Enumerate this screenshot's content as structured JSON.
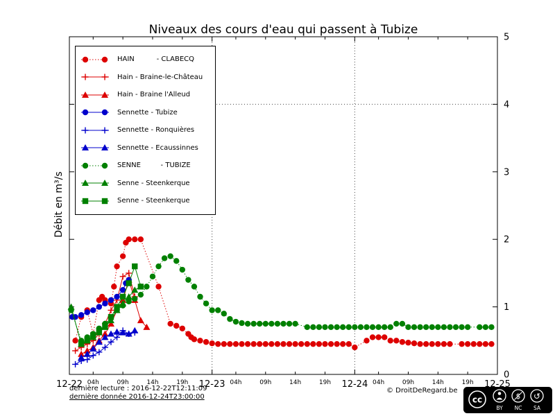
{
  "footer": {
    "line1": "dernière lecture : 2016-12-22T12:11:09",
    "line2": "dernière donnée  2016-12-24T23:00:00",
    "copyright": "© DroitDeRegard.be",
    "license": "CC BY NC SA",
    "license_parts": [
      "BY",
      "NC",
      "SA"
    ],
    "license_logo": "cc"
  },
  "chart_data": {
    "type": "line",
    "title": "Niveaux des cours d'eau qui passent à Tubize",
    "xlabel": "",
    "ylabel": "Débit en m³/s",
    "x_unit": "hours since 2016-12-22 00:00",
    "xlim": [
      0,
      72
    ],
    "ylim": [
      0,
      5
    ],
    "yticks": [
      0,
      1,
      2,
      3,
      4,
      5
    ],
    "x_major_ticks": [
      {
        "t": 0,
        "label": "12-22"
      },
      {
        "t": 24,
        "label": "12-23"
      },
      {
        "t": 48,
        "label": "12-24"
      },
      {
        "t": 72,
        "label": "12-25"
      }
    ],
    "x_minor_ticks": [
      {
        "t": 4,
        "label": "04h"
      },
      {
        "t": 9,
        "label": "09h"
      },
      {
        "t": 14,
        "label": "14h"
      },
      {
        "t": 19,
        "label": "19h"
      },
      {
        "t": 28,
        "label": "04h"
      },
      {
        "t": 33,
        "label": "09h"
      },
      {
        "t": 38,
        "label": "14h"
      },
      {
        "t": 43,
        "label": "19h"
      },
      {
        "t": 52,
        "label": "04h"
      },
      {
        "t": 57,
        "label": "09h"
      },
      {
        "t": 62,
        "label": "14h"
      },
      {
        "t": 67,
        "label": "19h"
      }
    ],
    "grid": {
      "x_hours": [
        24,
        48
      ],
      "y_values": [
        4
      ]
    },
    "legend_position": "top-left",
    "series": [
      {
        "label": "HAIN          - CLABECQ",
        "color": "#dd0000",
        "marker": "circle",
        "line": "dotted",
        "points": [
          [
            1,
            0.5
          ],
          [
            2,
            0.85
          ],
          [
            3,
            0.95
          ],
          [
            4,
            0.6
          ],
          [
            5,
            1.1
          ],
          [
            5.5,
            1.15
          ],
          [
            6,
            1.1
          ],
          [
            7,
            1.05
          ],
          [
            7.5,
            1.3
          ],
          [
            8,
            1.6
          ],
          [
            9,
            1.75
          ],
          [
            9.5,
            1.95
          ],
          [
            10,
            2.0
          ],
          [
            11,
            2.0
          ],
          [
            12,
            2.0
          ],
          [
            15,
            1.3
          ],
          [
            17,
            0.75
          ],
          [
            18,
            0.72
          ],
          [
            19,
            0.68
          ],
          [
            20,
            0.6
          ],
          [
            20.5,
            0.55
          ],
          [
            21,
            0.52
          ],
          [
            22,
            0.5
          ],
          [
            23,
            0.48
          ],
          [
            24,
            0.46
          ],
          [
            25,
            0.45
          ],
          [
            26,
            0.45
          ],
          [
            27,
            0.45
          ],
          [
            28,
            0.45
          ],
          [
            29,
            0.45
          ],
          [
            30,
            0.45
          ],
          [
            31,
            0.45
          ],
          [
            32,
            0.45
          ],
          [
            33,
            0.45
          ],
          [
            34,
            0.45
          ],
          [
            35,
            0.45
          ],
          [
            36,
            0.45
          ],
          [
            37,
            0.45
          ],
          [
            38,
            0.45
          ],
          [
            39,
            0.45
          ],
          [
            40,
            0.45
          ],
          [
            41,
            0.45
          ],
          [
            42,
            0.45
          ],
          [
            43,
            0.45
          ],
          [
            44,
            0.45
          ],
          [
            45,
            0.45
          ],
          [
            46,
            0.45
          ],
          [
            47,
            0.45
          ],
          [
            48,
            0.4
          ],
          [
            50,
            0.5
          ],
          [
            51,
            0.55
          ],
          [
            52,
            0.55
          ],
          [
            53,
            0.55
          ],
          [
            54,
            0.5
          ],
          [
            55,
            0.5
          ],
          [
            56,
            0.48
          ],
          [
            57,
            0.47
          ],
          [
            58,
            0.46
          ],
          [
            59,
            0.45
          ],
          [
            60,
            0.45
          ],
          [
            61,
            0.45
          ],
          [
            62,
            0.45
          ],
          [
            63,
            0.45
          ],
          [
            64,
            0.45
          ],
          [
            66,
            0.45
          ],
          [
            67,
            0.45
          ],
          [
            68,
            0.45
          ],
          [
            69,
            0.45
          ],
          [
            70,
            0.45
          ],
          [
            71,
            0.45
          ]
        ]
      },
      {
        "label": "Hain - Braine-le-Château",
        "color": "#dd0000",
        "marker": "plus",
        "line": "solid",
        "points": [
          [
            1,
            0.35
          ],
          [
            2,
            0.4
          ],
          [
            3,
            0.45
          ],
          [
            4,
            0.5
          ],
          [
            5,
            0.6
          ],
          [
            6,
            0.75
          ],
          [
            7,
            0.95
          ],
          [
            8,
            1.1
          ],
          [
            9,
            1.45
          ],
          [
            10,
            1.5
          ],
          [
            11,
            1.15
          ]
        ]
      },
      {
        "label": "Hain - Braine l'Alleud",
        "color": "#dd0000",
        "marker": "triangle",
        "line": "solid",
        "points": [
          [
            2,
            0.3
          ],
          [
            3,
            0.35
          ],
          [
            4,
            0.4
          ],
          [
            5,
            0.5
          ],
          [
            6,
            0.6
          ],
          [
            7,
            0.75
          ],
          [
            8,
            0.95
          ],
          [
            9,
            1.1
          ],
          [
            10,
            1.4
          ],
          [
            11,
            1.1
          ],
          [
            12,
            0.8
          ],
          [
            13,
            0.7
          ]
        ]
      },
      {
        "label": "Sennette - Tubize",
        "color": "#0000cc",
        "marker": "circle",
        "line": "solid",
        "points": [
          [
            0.5,
            0.85
          ],
          [
            1,
            0.85
          ],
          [
            2,
            0.88
          ],
          [
            3,
            0.92
          ],
          [
            4,
            0.95
          ],
          [
            5,
            1.0
          ],
          [
            6,
            1.05
          ],
          [
            7,
            1.1
          ],
          [
            8,
            1.15
          ],
          [
            9,
            1.25
          ],
          [
            9.5,
            1.35
          ],
          [
            10,
            1.4
          ]
        ]
      },
      {
        "label": "Sennette - Ronquières",
        "color": "#0000cc",
        "marker": "plus",
        "line": "solid",
        "points": [
          [
            1,
            0.15
          ],
          [
            2,
            0.2
          ],
          [
            3,
            0.22
          ],
          [
            4,
            0.28
          ],
          [
            5,
            0.33
          ],
          [
            6,
            0.4
          ],
          [
            7,
            0.48
          ],
          [
            8,
            0.55
          ],
          [
            9,
            0.65
          ],
          [
            10,
            0.6
          ],
          [
            11,
            0.62
          ]
        ]
      },
      {
        "label": "Sennette - Ecaussinnes",
        "color": "#0000cc",
        "marker": "triangle",
        "line": "solid",
        "points": [
          [
            2,
            0.25
          ],
          [
            3,
            0.3
          ],
          [
            4,
            0.38
          ],
          [
            5,
            0.48
          ],
          [
            6,
            0.55
          ],
          [
            7,
            0.6
          ],
          [
            8,
            0.63
          ],
          [
            9,
            0.62
          ],
          [
            10,
            0.6
          ],
          [
            11,
            0.65
          ]
        ]
      },
      {
        "label": "SENNE         - TUBIZE",
        "color": "#008000",
        "marker": "circle",
        "line": "dotted",
        "points": [
          [
            0.3,
            0.95
          ],
          [
            2,
            0.5
          ],
          [
            3,
            0.55
          ],
          [
            4,
            0.6
          ],
          [
            5,
            0.68
          ],
          [
            6,
            0.75
          ],
          [
            7,
            0.85
          ],
          [
            8,
            0.95
          ],
          [
            9,
            1.02
          ],
          [
            10,
            1.08
          ],
          [
            11,
            1.12
          ],
          [
            12,
            1.18
          ],
          [
            13,
            1.3
          ],
          [
            14,
            1.45
          ],
          [
            15,
            1.6
          ],
          [
            16,
            1.72
          ],
          [
            17,
            1.75
          ],
          [
            18,
            1.68
          ],
          [
            19,
            1.55
          ],
          [
            20,
            1.4
          ],
          [
            21,
            1.3
          ],
          [
            22,
            1.15
          ],
          [
            23,
            1.05
          ],
          [
            24,
            0.95
          ],
          [
            25,
            0.95
          ],
          [
            26,
            0.9
          ],
          [
            27,
            0.82
          ],
          [
            28,
            0.78
          ],
          [
            29,
            0.76
          ],
          [
            30,
            0.75
          ],
          [
            31,
            0.75
          ],
          [
            32,
            0.75
          ],
          [
            33,
            0.75
          ],
          [
            34,
            0.75
          ],
          [
            35,
            0.75
          ],
          [
            36,
            0.75
          ],
          [
            37,
            0.75
          ],
          [
            38,
            0.75
          ],
          [
            40,
            0.7
          ],
          [
            41,
            0.7
          ],
          [
            42,
            0.7
          ],
          [
            43,
            0.7
          ],
          [
            44,
            0.7
          ],
          [
            45,
            0.7
          ],
          [
            46,
            0.7
          ],
          [
            47,
            0.7
          ],
          [
            48,
            0.7
          ],
          [
            49,
            0.7
          ],
          [
            50,
            0.7
          ],
          [
            51,
            0.7
          ],
          [
            52,
            0.7
          ],
          [
            53,
            0.7
          ],
          [
            54,
            0.7
          ],
          [
            55,
            0.75
          ],
          [
            56,
            0.75
          ],
          [
            57,
            0.7
          ],
          [
            58,
            0.7
          ],
          [
            59,
            0.7
          ],
          [
            60,
            0.7
          ],
          [
            61,
            0.7
          ],
          [
            62,
            0.7
          ],
          [
            63,
            0.7
          ],
          [
            64,
            0.7
          ],
          [
            65,
            0.7
          ],
          [
            66,
            0.7
          ],
          [
            67,
            0.7
          ],
          [
            69,
            0.7
          ],
          [
            70,
            0.7
          ],
          [
            71,
            0.7
          ]
        ]
      },
      {
        "label": "Senne - Steenkerque",
        "color": "#008000",
        "marker": "triangle",
        "line": "solid",
        "points": [
          [
            0.3,
            1.0
          ],
          [
            2,
            0.45
          ],
          [
            3,
            0.5
          ],
          [
            4,
            0.55
          ],
          [
            5,
            0.62
          ],
          [
            6,
            0.7
          ],
          [
            7,
            0.8
          ],
          [
            8,
            0.95
          ],
          [
            9,
            1.05
          ],
          [
            10,
            1.15
          ],
          [
            11,
            1.25
          ],
          [
            12,
            1.3
          ]
        ]
      },
      {
        "label": "Senne - Steenkerque",
        "color": "#008000",
        "marker": "square",
        "line": "solid",
        "points": [
          [
            2,
            0.45
          ],
          [
            3,
            0.5
          ],
          [
            4,
            0.58
          ],
          [
            5,
            0.65
          ],
          [
            6,
            0.72
          ],
          [
            7,
            0.85
          ],
          [
            8,
            1.0
          ],
          [
            9,
            1.15
          ],
          [
            10,
            1.35
          ],
          [
            11,
            1.6
          ],
          [
            12,
            1.3
          ]
        ]
      }
    ]
  }
}
